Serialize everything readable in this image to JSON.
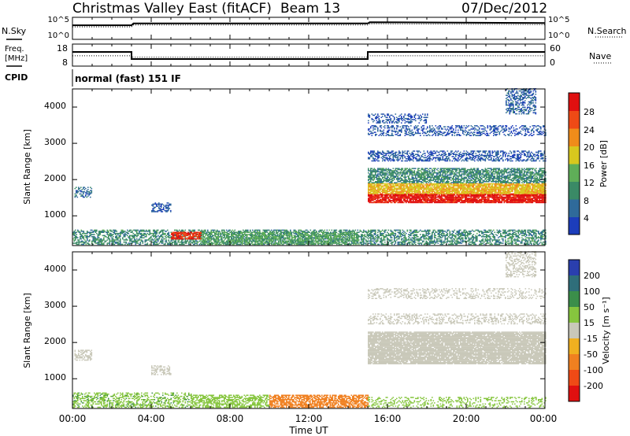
{
  "header": {
    "station": "Christmas Valley East (fitACF)",
    "beam": "Beam 13",
    "date": "07/Dec/2012"
  },
  "noise_panel": {
    "left_label": "N.Sky",
    "left_ticks": [
      "10^5",
      "10^0"
    ],
    "right_ticks": [
      "10^5",
      "10^0"
    ],
    "right_label": "N.Search"
  },
  "freq_panel": {
    "left_label_line1": "Freq.",
    "left_label_line2": "[MHz]",
    "left_ticks": [
      "18",
      "8"
    ],
    "right_ticks": [
      "60",
      "0"
    ],
    "right_label": "Nave",
    "cpid_label": "CPID",
    "cpid_text": "normal (fast) 151 IF"
  },
  "x_axis": {
    "label": "Time UT",
    "tick_labels": [
      "00:00",
      "04:00",
      "08:00",
      "12:00",
      "16:00",
      "20:00",
      "00:00"
    ]
  },
  "power_panel": {
    "ylabel": "Slant Range [km]",
    "y_tick_labels": [
      "1000",
      "2000",
      "3000",
      "4000"
    ],
    "colorbar_label": "Power [dB]",
    "colorbar_ticks": [
      "4",
      "8",
      "12",
      "16",
      "20",
      "24",
      "28"
    ],
    "colors": [
      "#1c3dbb",
      "#2f6a9a",
      "#3a8a66",
      "#5fae58",
      "#d8c81e",
      "#f08c1a",
      "#ef4a16",
      "#e01010"
    ]
  },
  "velocity_panel": {
    "ylabel": "Slant Range [km]",
    "y_tick_labels": [
      "1000",
      "2000",
      "3000",
      "4000"
    ],
    "colorbar_label": "Velocity [m s⁻¹]",
    "colorbar_ticks": [
      "200",
      "100",
      "50",
      "15",
      "-15",
      "-50",
      "-100",
      "-200"
    ],
    "colors": [
      "#2a3fae",
      "#2f6e7a",
      "#3b8e4a",
      "#86c53e",
      "#c9c8b9",
      "#f0b020",
      "#f08020",
      "#ef4a16",
      "#e01010"
    ]
  },
  "chart_data": [
    {
      "type": "line",
      "title": "Christmas Valley East (fitACF) Beam 13 07/Dec/2012",
      "x": [
        0,
        3,
        3.1,
        15,
        15.1,
        24
      ],
      "series": [
        {
          "name": "N.Sky",
          "values": [
            3.2,
            3.2,
            3.6,
            3.6,
            3.9,
            3.7
          ]
        }
      ],
      "xlim": [
        0,
        24
      ],
      "ylim": [
        0,
        5
      ]
    },
    {
      "type": "line",
      "x": [
        0,
        3,
        3,
        15,
        15,
        24
      ],
      "series": [
        {
          "name": "Freq",
          "values": [
            15,
            15,
            10.5,
            10.5,
            15,
            15
          ]
        },
        {
          "name": "Nave",
          "values": [
            30,
            30,
            26,
            26,
            30,
            30
          ]
        }
      ],
      "xlim": [
        0,
        24
      ]
    },
    {
      "type": "heatmap",
      "xlabel": "Time UT",
      "ylabel": "Slant Range [km]",
      "xlim": [
        0,
        24
      ],
      "ylim": [
        180,
        4500
      ],
      "colorbar": "Power [dB]",
      "clim": [
        0,
        30
      ],
      "regions": [
        {
          "t0": 0.0,
          "t1": 24.0,
          "r0": 200,
          "r1": 600,
          "value": 9,
          "density": 0.55
        },
        {
          "t0": 5.0,
          "t1": 6.5,
          "r0": 350,
          "r1": 550,
          "value": 26,
          "density": 0.8
        },
        {
          "t0": 6.5,
          "t1": 14.5,
          "r0": 200,
          "r1": 550,
          "value": 12,
          "density": 0.55
        },
        {
          "t0": 0.1,
          "t1": 1.0,
          "r0": 1500,
          "r1": 1800,
          "value": 6,
          "density": 0.5
        },
        {
          "t0": 4.0,
          "t1": 5.0,
          "r0": 1100,
          "r1": 1350,
          "value": 4,
          "density": 0.5
        },
        {
          "t0": 15.0,
          "t1": 24.0,
          "r0": 1350,
          "r1": 1600,
          "value": 28,
          "density": 0.9
        },
        {
          "t0": 15.0,
          "t1": 24.0,
          "r0": 1600,
          "r1": 1900,
          "value": 18,
          "density": 0.85
        },
        {
          "t0": 15.0,
          "t1": 24.0,
          "r0": 1900,
          "r1": 2300,
          "value": 9,
          "density": 0.7
        },
        {
          "t0": 15.0,
          "t1": 24.0,
          "r0": 2500,
          "r1": 2800,
          "value": 4,
          "density": 0.5
        },
        {
          "t0": 15.0,
          "t1": 24.0,
          "r0": 3200,
          "r1": 3500,
          "value": 4,
          "density": 0.4
        },
        {
          "t0": 15.0,
          "t1": 18.0,
          "r0": 3550,
          "r1": 3800,
          "value": 4,
          "density": 0.4
        },
        {
          "t0": 22.0,
          "t1": 23.5,
          "r0": 3800,
          "r1": 4500,
          "value": 5,
          "density": 0.45
        }
      ]
    },
    {
      "type": "heatmap",
      "xlabel": "Time UT",
      "ylabel": "Slant Range [km]",
      "xlim": [
        0,
        24
      ],
      "ylim": [
        180,
        4500
      ],
      "colorbar": "Velocity [m s⁻¹]",
      "clim": [
        -250,
        250
      ],
      "regions": [
        {
          "t0": 0.0,
          "t1": 6.0,
          "r0": 200,
          "r1": 600,
          "value": 30,
          "density": 0.45
        },
        {
          "t0": 6.0,
          "t1": 10.0,
          "r0": 200,
          "r1": 550,
          "value": 25,
          "density": 0.6
        },
        {
          "t0": 10.0,
          "t1": 15.0,
          "r0": 200,
          "r1": 550,
          "value": -35,
          "density": 0.7
        },
        {
          "t0": 15.0,
          "t1": 24.0,
          "r0": 200,
          "r1": 500,
          "value": 20,
          "density": 0.3
        },
        {
          "t0": 0.1,
          "t1": 1.0,
          "r0": 1500,
          "r1": 1800,
          "value": 0,
          "density": 0.5
        },
        {
          "t0": 4.0,
          "t1": 5.0,
          "r0": 1100,
          "r1": 1350,
          "value": 0,
          "density": 0.5
        },
        {
          "t0": 15.0,
          "t1": 24.0,
          "r0": 1400,
          "r1": 2300,
          "value": 0,
          "density": 0.9
        },
        {
          "t0": 15.0,
          "t1": 24.0,
          "r0": 2500,
          "r1": 2800,
          "value": 0,
          "density": 0.35
        },
        {
          "t0": 15.0,
          "t1": 24.0,
          "r0": 3200,
          "r1": 3500,
          "value": 0,
          "density": 0.3
        },
        {
          "t0": 22.0,
          "t1": 23.5,
          "r0": 3800,
          "r1": 4500,
          "value": 0,
          "density": 0.35
        }
      ]
    }
  ]
}
